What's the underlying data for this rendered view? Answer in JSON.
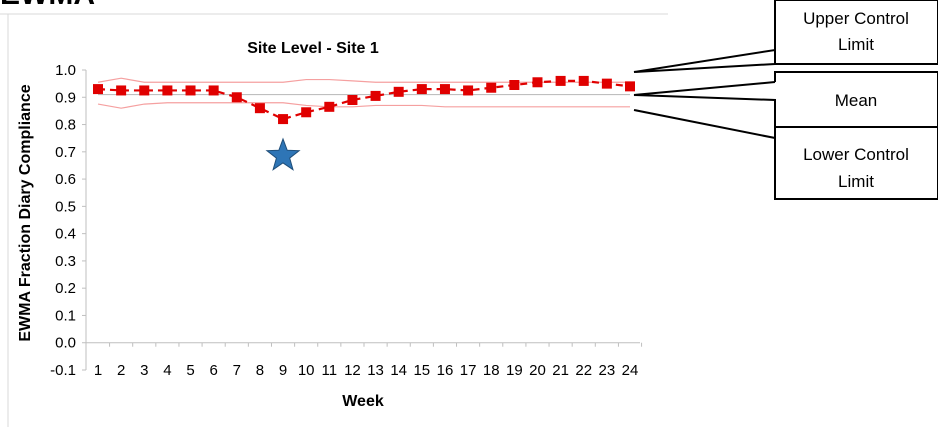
{
  "header_fragment": "EWMA",
  "chart_data": {
    "type": "line",
    "title": "Site Level - Site 1",
    "xlabel": "Week",
    "ylabel": "EWMA Fraction Diary Compliance",
    "x": [
      1,
      2,
      3,
      4,
      5,
      6,
      7,
      8,
      9,
      10,
      11,
      12,
      13,
      14,
      15,
      16,
      17,
      18,
      19,
      20,
      21,
      22,
      23,
      24
    ],
    "ylim": [
      -0.1,
      1.0
    ],
    "yticks": [
      "-0.1",
      "0.0",
      "0.1",
      "0.2",
      "0.3",
      "0.4",
      "0.5",
      "0.6",
      "0.7",
      "0.8",
      "0.9",
      "1.0"
    ],
    "grid": false,
    "series": [
      {
        "values": [
          0.93,
          0.925,
          0.925,
          0.925,
          0.925,
          0.925,
          0.9,
          0.86,
          0.82,
          0.845,
          0.865,
          0.89,
          0.905,
          0.92,
          0.93,
          0.93,
          0.925,
          0.935,
          0.945,
          0.955,
          0.96,
          0.96,
          0.95,
          0.94
        ],
        "color": "#e00000",
        "style": "dashed",
        "marker": "square"
      },
      {
        "values": [
          0.955,
          0.97,
          0.955,
          0.955,
          0.955,
          0.955,
          0.955,
          0.955,
          0.955,
          0.965,
          0.965,
          0.96,
          0.955,
          0.955,
          0.955,
          0.955,
          0.955,
          0.955,
          0.955,
          0.955,
          0.955,
          0.955,
          0.955,
          0.955
        ],
        "color": "#f5a0a0",
        "style": "solid",
        "marker": "none"
      },
      {
        "values": [
          0.875,
          0.86,
          0.875,
          0.88,
          0.88,
          0.88,
          0.88,
          0.88,
          0.88,
          0.87,
          0.865,
          0.865,
          0.87,
          0.87,
          0.87,
          0.865,
          0.865,
          0.865,
          0.865,
          0.865,
          0.865,
          0.865,
          0.865,
          0.865
        ],
        "color": "#f5a0a0",
        "style": "solid",
        "marker": "none"
      },
      {
        "values": [
          0.91,
          0.91,
          0.91,
          0.91,
          0.91,
          0.91,
          0.91,
          0.91,
          0.91,
          0.91,
          0.91,
          0.91,
          0.91,
          0.91,
          0.91,
          0.91,
          0.91,
          0.91,
          0.91,
          0.91,
          0.91,
          0.91,
          0.91,
          0.91
        ],
        "color": "#bfbfbf",
        "style": "solid",
        "marker": "none"
      }
    ],
    "annotations": [
      {
        "type": "star",
        "x": 9,
        "y": 0.685,
        "color": "#2e75b6"
      }
    ]
  },
  "callouts": {
    "upper": [
      "Upper Control",
      "Limit"
    ],
    "mean": [
      "Mean"
    ],
    "lower": [
      "Lower Control",
      "Limit"
    ]
  }
}
